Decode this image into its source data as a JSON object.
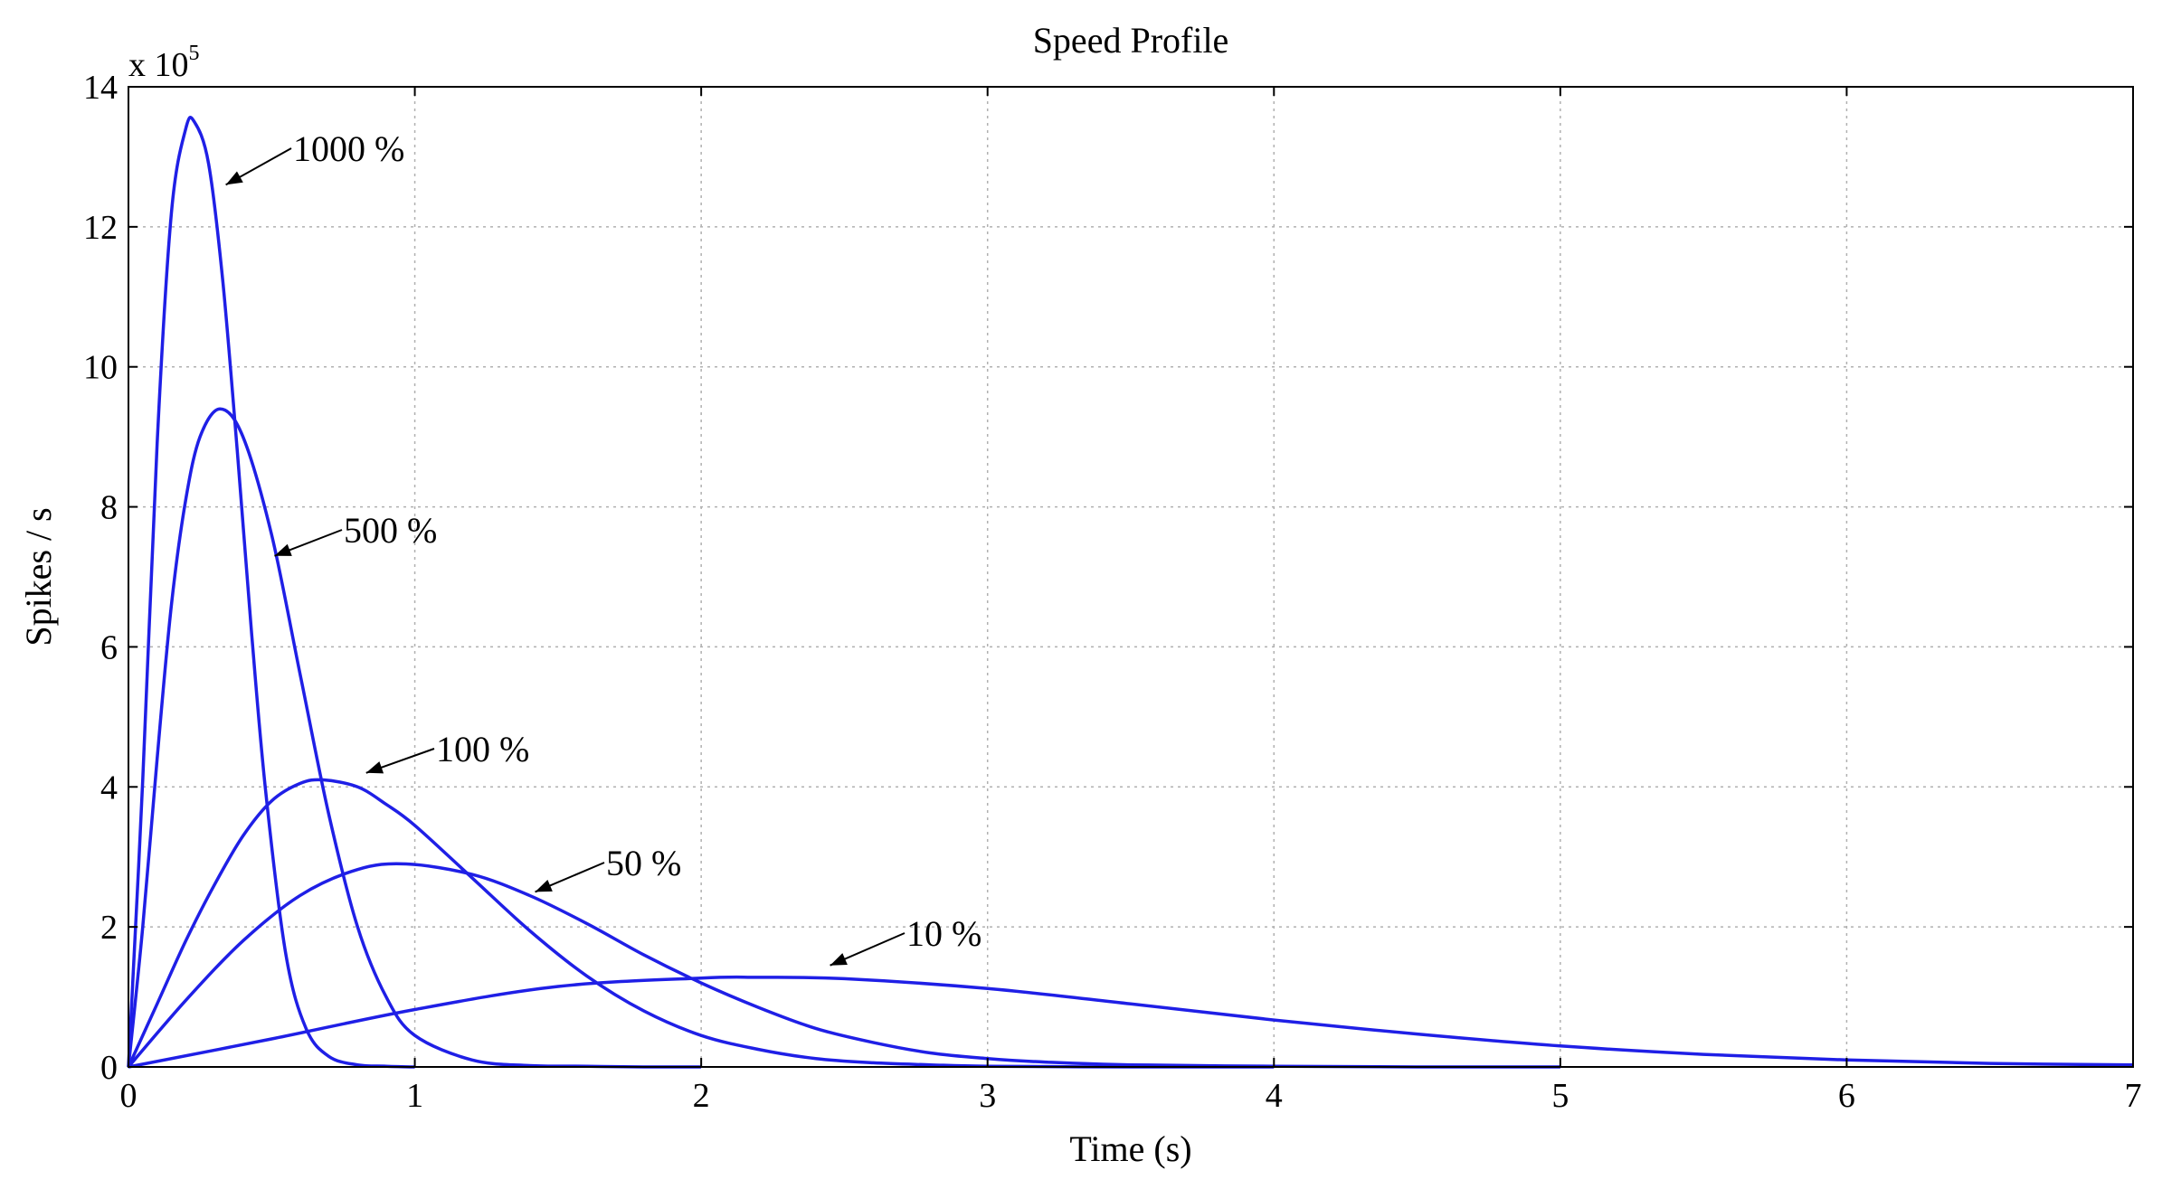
{
  "chart_data": {
    "type": "line",
    "title": "Speed Profile",
    "xlabel": "Time (s)",
    "ylabel": "Spikes / s",
    "y_multiplier": {
      "base": "x 10",
      "exponent": "5"
    },
    "xlim": [
      0,
      7
    ],
    "ylim": [
      0,
      14
    ],
    "xticks": [
      0,
      1,
      2,
      3,
      4,
      5,
      6,
      7
    ],
    "yticks": [
      0,
      2,
      4,
      6,
      8,
      10,
      12,
      14
    ],
    "xtick_labels": [
      "0",
      "1",
      "2",
      "3",
      "4",
      "5",
      "6",
      "7"
    ],
    "ytick_labels": [
      "0",
      "2",
      "4",
      "6",
      "8",
      "10",
      "12",
      "14"
    ],
    "grid": true,
    "line_color": "#1f1fe6",
    "series": [
      {
        "name": "1000 %",
        "peak_x": 0.23,
        "peak_y": 13.5,
        "x": [
          0,
          0.05,
          0.1,
          0.15,
          0.2,
          0.23,
          0.28,
          0.33,
          0.38,
          0.43,
          0.48,
          0.55,
          0.62,
          0.7,
          0.8,
          0.9,
          1.0
        ],
        "y": [
          0,
          4.1,
          8.9,
          12.2,
          13.4,
          13.5,
          12.9,
          11.2,
          8.8,
          6.2,
          3.9,
          1.6,
          0.55,
          0.15,
          0.03,
          0.01,
          0
        ]
      },
      {
        "name": "500 %",
        "peak_x": 0.32,
        "peak_y": 9.4,
        "x": [
          0,
          0.05,
          0.1,
          0.15,
          0.2,
          0.25,
          0.32,
          0.4,
          0.5,
          0.6,
          0.7,
          0.8,
          0.9,
          1.0,
          1.2,
          1.4,
          1.6,
          1.8,
          2.0
        ],
        "y": [
          0,
          2.0,
          4.4,
          6.6,
          8.1,
          9.0,
          9.4,
          9.0,
          7.6,
          5.6,
          3.6,
          2.0,
          1.0,
          0.45,
          0.1,
          0.02,
          0.01,
          0,
          0
        ]
      },
      {
        "name": "100 %",
        "peak_x": 0.68,
        "peak_y": 4.1,
        "x": [
          0,
          0.1,
          0.2,
          0.3,
          0.4,
          0.5,
          0.6,
          0.68,
          0.8,
          0.9,
          1.0,
          1.2,
          1.4,
          1.6,
          1.8,
          2.0,
          2.2,
          2.4,
          2.6,
          2.8,
          3.0,
          3.5,
          4.0
        ],
        "y": [
          0,
          0.9,
          1.8,
          2.6,
          3.3,
          3.8,
          4.05,
          4.1,
          4.0,
          3.75,
          3.45,
          2.7,
          1.95,
          1.3,
          0.8,
          0.45,
          0.25,
          0.12,
          0.06,
          0.03,
          0.01,
          0,
          0
        ]
      },
      {
        "name": "50 %",
        "peak_x": 0.97,
        "peak_y": 2.9,
        "x": [
          0,
          0.2,
          0.4,
          0.6,
          0.8,
          0.97,
          1.2,
          1.4,
          1.6,
          1.8,
          2.0,
          2.2,
          2.4,
          2.6,
          2.8,
          3.0,
          3.2,
          3.5,
          4.0,
          4.5,
          5.0
        ],
        "y": [
          0,
          0.95,
          1.8,
          2.45,
          2.82,
          2.9,
          2.75,
          2.45,
          2.05,
          1.6,
          1.2,
          0.85,
          0.55,
          0.35,
          0.2,
          0.12,
          0.07,
          0.03,
          0.01,
          0,
          0
        ]
      },
      {
        "name": "10 %",
        "peak_x": 2.2,
        "peak_y": 1.28,
        "x": [
          0,
          0.5,
          1.0,
          1.5,
          2.0,
          2.2,
          2.5,
          3.0,
          3.5,
          4.0,
          4.5,
          5.0,
          5.5,
          6.0,
          6.5,
          7.0
        ],
        "y": [
          0,
          0.4,
          0.82,
          1.15,
          1.27,
          1.28,
          1.26,
          1.12,
          0.9,
          0.67,
          0.47,
          0.3,
          0.18,
          0.1,
          0.05,
          0.03
        ]
      }
    ],
    "annotations": [
      {
        "text": "1000 %",
        "points_to": [
          0.34,
          12.6
        ]
      },
      {
        "text": "500 %",
        "points_to": [
          0.51,
          7.3
        ]
      },
      {
        "text": "100 %",
        "points_to": [
          0.83,
          4.2
        ]
      },
      {
        "text": "50 %",
        "points_to": [
          1.42,
          2.5
        ]
      },
      {
        "text": "10 %",
        "points_to": [
          2.45,
          1.45
        ]
      }
    ]
  }
}
